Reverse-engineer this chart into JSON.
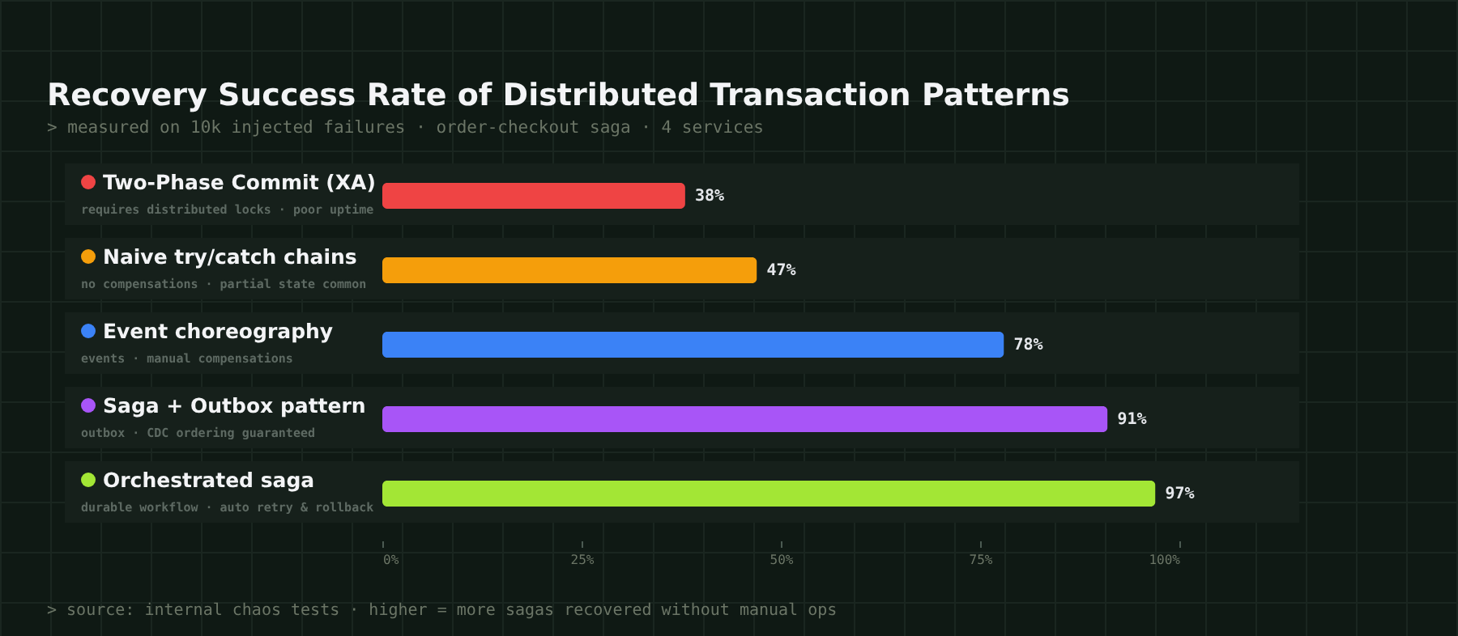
{
  "chart_data": {
    "type": "bar",
    "orientation": "horizontal",
    "title": "Recovery Success Rate of Distributed Transaction Patterns",
    "subtitle": "> measured on 10k injected failures · order-checkout saga · 4 services",
    "categories": [
      "Two-Phase Commit (XA)",
      "Naive try/catch chains",
      "Event choreography",
      "Saga + Outbox pattern",
      "Orchestrated saga"
    ],
    "values": [
      38,
      47,
      78,
      91,
      97
    ],
    "colors": [
      "#ef4444",
      "#f59e0b",
      "#3b82f6",
      "#a855f7",
      "#a3e635"
    ],
    "value_labels": [
      "38%",
      "47%",
      "78%",
      "91%",
      "97%"
    ],
    "xlim": [
      0,
      100
    ],
    "xticks": [
      {
        "value": 0,
        "label": "0%"
      },
      {
        "value": 25,
        "label": "25%"
      },
      {
        "value": 50,
        "label": "50%"
      },
      {
        "value": 75,
        "label": "75%"
      },
      {
        "value": 100,
        "label": "100%"
      }
    ],
    "annotations": [
      "requires distributed locks · poor uptime",
      "no compensations · partial state common",
      "events · manual compensations",
      "outbox · CDC ordering guaranteed",
      "durable workflow · auto retry & rollback",
      "> source: internal chaos tests · higher = more sagas recovered without manual ops"
    ]
  }
}
